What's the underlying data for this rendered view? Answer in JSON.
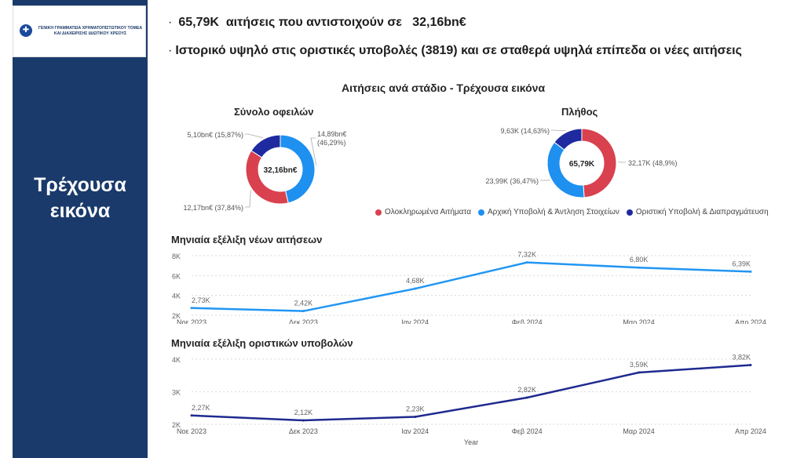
{
  "logo": {
    "line1": "ΓΕΝΙΚΗ ΓΡΑΜΜΑΤΕΙΑ ΧΡΗΜΑΤΟΠΙΣΤΩΤΙΚΟΥ ΤΟΜΕΑ",
    "line2": "ΚΑΙ ΔΙΑΧΕΙΡΙΣΗΣ ΙΔΙΩΤΙΚΟΥ ΧΡΕΟΥΣ"
  },
  "sidebar": {
    "title_line1": "Τρέχουσα",
    "title_line2": "εικόνα"
  },
  "bullets": {
    "b1_dot": "·",
    "b1_count": "65,79K",
    "b1_text": "αιτήσεις που αντιστοιχούν σε",
    "b1_amount": "32,16bn€",
    "b2_dot": "·",
    "b2_text": "Ιστορικό υψηλό στις οριστικές υποβολές (3819) και σε σταθερά υψηλά επίπεδα οι νέες αιτήσεις"
  },
  "section_title": "Αιτήσεις ανά στάδιο - Τρέχουσα εικόνα",
  "colors": {
    "red": "#d9414f",
    "light_blue": "#1e90f0",
    "dark_blue": "#1f2aa0",
    "line_blue": "#2196f3",
    "line_navy": "#1f2a8f"
  },
  "legend": [
    {
      "label": "Ολοκληρωμένα Αιτήματα",
      "color": "#d9414f"
    },
    {
      "label": "Αρχική Υποβολή & Άντληση Στοιχείων",
      "color": "#1e90f0"
    },
    {
      "label": "Οριστική Υποβολή & Διαπραγμάτευση",
      "color": "#1f2aa0"
    }
  ],
  "chart_data": [
    {
      "type": "pie",
      "title": "Σύνολο οφειλών",
      "center_label": "32,16bn€",
      "slices": [
        {
          "label": "14,89bn€",
          "pct_label": "(46,29%)",
          "value": 46.29,
          "category": "Αρχική Υποβολή & Άντληση Στοιχείων"
        },
        {
          "label": "12,17bn€",
          "pct_label": "(37,84%)",
          "value": 37.84,
          "category": "Ολοκληρωμένα Αιτήματα"
        },
        {
          "label": "5,10bn€",
          "pct_label": "(15,87%)",
          "value": 15.87,
          "category": "Οριστική Υποβολή & Διαπραγμάτευση"
        }
      ]
    },
    {
      "type": "pie",
      "title": "Πλήθος",
      "center_label": "65,79K",
      "slices": [
        {
          "label": "32,17K",
          "pct_label": "(48,9%)",
          "value": 48.9,
          "category": "Ολοκληρωμένα Αιτήματα"
        },
        {
          "label": "23,99K",
          "pct_label": "(36,47%)",
          "value": 36.47,
          "category": "Αρχική Υποβολή & Άντληση Στοιχείων"
        },
        {
          "label": "9,63K",
          "pct_label": "(14,63%)",
          "value": 14.63,
          "category": "Οριστική Υποβολή & Διαπραγμάτευση"
        }
      ]
    },
    {
      "type": "line",
      "title": "Μηνιαία εξέλιξη νέων αιτήσεων",
      "categories": [
        "Νοε 2023",
        "Δεκ 2023",
        "Ιαν 2024",
        "Φεβ 2024",
        "Μαρ 2024",
        "Απρ 2024"
      ],
      "values": [
        2730,
        2420,
        4680,
        7320,
        6800,
        6390
      ],
      "value_labels": [
        "2,73K",
        "2,42K",
        "4,68K",
        "7,32K",
        "6,80K",
        "6,39K"
      ],
      "yticks": [
        "8K",
        "6K",
        "4K",
        "2K"
      ],
      "ylim": [
        2000,
        8000
      ],
      "grid": true
    },
    {
      "type": "line",
      "title": "Μηνιαία εξέλιξη οριστικών υποβολών",
      "categories": [
        "Νοε 2023",
        "Δεκ 2023",
        "Ιαν 2024",
        "Φεβ 2024",
        "Μαρ 2024",
        "Απρ 2024"
      ],
      "values": [
        2270,
        2120,
        2230,
        2820,
        3590,
        3820
      ],
      "value_labels": [
        "2,27K",
        "2,12K",
        "2,23K",
        "2,82K",
        "3,59K",
        "3,82K"
      ],
      "yticks": [
        "4K",
        "3K",
        "2K"
      ],
      "ylim": [
        2000,
        4000
      ],
      "xlabel": "Year",
      "grid": true
    }
  ]
}
